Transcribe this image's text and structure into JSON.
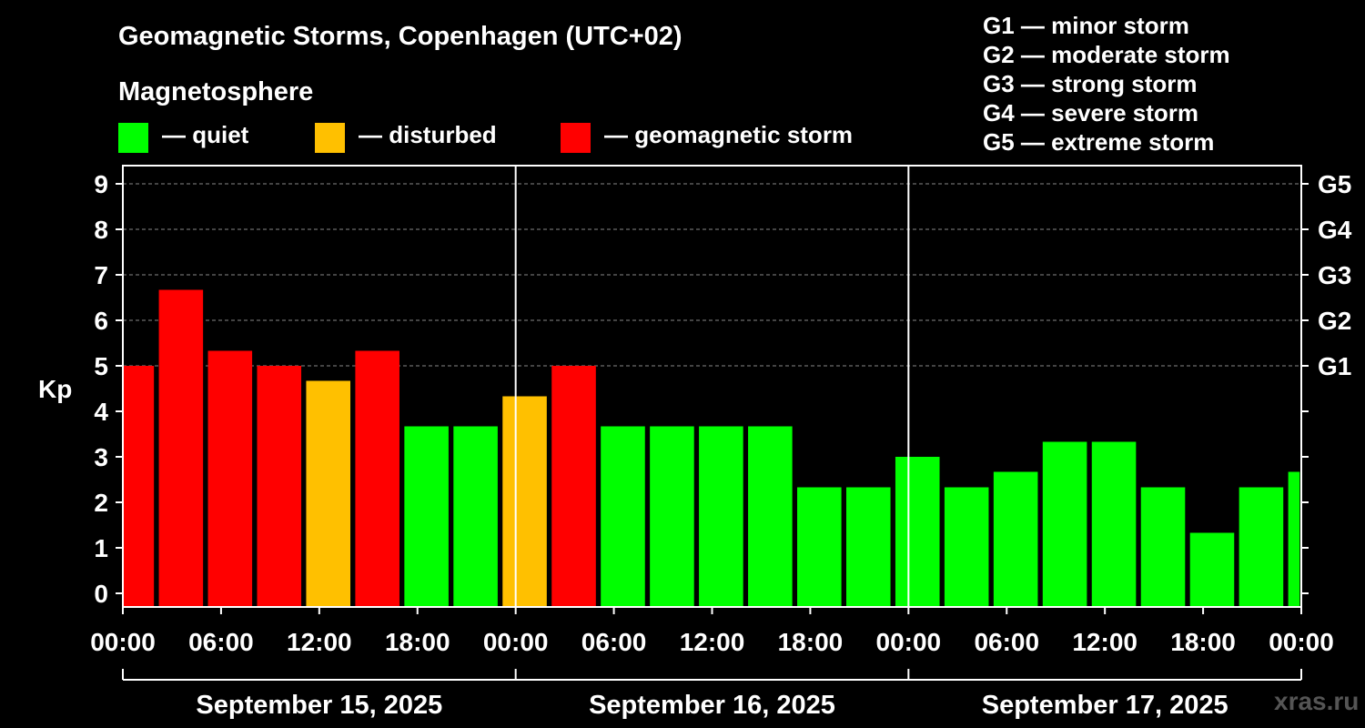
{
  "title": "Geomagnetic Storms, Copenhagen (UTC+02)",
  "magnetosphere_label": "Magnetosphere",
  "legend": [
    {
      "label": "— quiet",
      "color": "#00ff00"
    },
    {
      "label": "— disturbed",
      "color": "#ffc000"
    },
    {
      "label": "— geomagnetic storm",
      "color": "#ff0000"
    }
  ],
  "storm_scale": [
    "G1 — minor storm",
    "G2 — moderate storm",
    "G3 — strong storm",
    "G4 — severe storm",
    "G5 — extreme storm"
  ],
  "watermark": "xras.ru",
  "colors": {
    "background": "#000000",
    "axis": "#ffffff",
    "grid": "#888888"
  },
  "chart_data": {
    "type": "bar",
    "ylabel": "Kp",
    "ylim": [
      -0.3,
      9.4
    ],
    "yticks": [
      "0",
      "1",
      "2",
      "3",
      "4",
      "5",
      "6",
      "7",
      "8",
      "9"
    ],
    "right_ticks": [
      {
        "kp": 5,
        "label": "G1"
      },
      {
        "kp": 6,
        "label": "G2"
      },
      {
        "kp": 7,
        "label": "G3"
      },
      {
        "kp": 8,
        "label": "G4"
      },
      {
        "kp": 9,
        "label": "G5"
      }
    ],
    "x_range_hours": [
      0,
      72
    ],
    "xtick_labels": [
      "00:00",
      "06:00",
      "12:00",
      "18:00",
      "00:00",
      "06:00",
      "12:00",
      "18:00",
      "00:00",
      "06:00",
      "12:00",
      "18:00",
      "00:00"
    ],
    "day_separators_hours": [
      24,
      48
    ],
    "days": [
      "September 15, 2025",
      "September 16, 2025",
      "September 17, 2025"
    ],
    "bars": [
      {
        "start_hour": 0,
        "end_hour": 1.9,
        "kp": 5.0,
        "status": "storm"
      },
      {
        "start_hour": 2.2,
        "end_hour": 4.9,
        "kp": 6.67,
        "status": "storm"
      },
      {
        "start_hour": 5.2,
        "end_hour": 7.9,
        "kp": 5.33,
        "status": "storm"
      },
      {
        "start_hour": 8.2,
        "end_hour": 10.9,
        "kp": 5.0,
        "status": "storm"
      },
      {
        "start_hour": 11.2,
        "end_hour": 13.9,
        "kp": 4.67,
        "status": "disturbed"
      },
      {
        "start_hour": 14.2,
        "end_hour": 16.9,
        "kp": 5.33,
        "status": "storm"
      },
      {
        "start_hour": 17.2,
        "end_hour": 19.9,
        "kp": 3.67,
        "status": "quiet"
      },
      {
        "start_hour": 20.2,
        "end_hour": 22.9,
        "kp": 3.67,
        "status": "quiet"
      },
      {
        "start_hour": 23.2,
        "end_hour": 25.9,
        "kp": 4.33,
        "status": "disturbed"
      },
      {
        "start_hour": 26.2,
        "end_hour": 28.9,
        "kp": 5.0,
        "status": "storm"
      },
      {
        "start_hour": 29.2,
        "end_hour": 31.9,
        "kp": 3.67,
        "status": "quiet"
      },
      {
        "start_hour": 32.2,
        "end_hour": 34.9,
        "kp": 3.67,
        "status": "quiet"
      },
      {
        "start_hour": 35.2,
        "end_hour": 37.9,
        "kp": 3.67,
        "status": "quiet"
      },
      {
        "start_hour": 38.2,
        "end_hour": 40.9,
        "kp": 3.67,
        "status": "quiet"
      },
      {
        "start_hour": 41.2,
        "end_hour": 43.9,
        "kp": 2.33,
        "status": "quiet"
      },
      {
        "start_hour": 44.2,
        "end_hour": 46.9,
        "kp": 2.33,
        "status": "quiet"
      },
      {
        "start_hour": 47.2,
        "end_hour": 49.9,
        "kp": 3.0,
        "status": "quiet"
      },
      {
        "start_hour": 50.2,
        "end_hour": 52.9,
        "kp": 2.33,
        "status": "quiet"
      },
      {
        "start_hour": 53.2,
        "end_hour": 55.9,
        "kp": 2.67,
        "status": "quiet"
      },
      {
        "start_hour": 56.2,
        "end_hour": 58.9,
        "kp": 3.33,
        "status": "quiet"
      },
      {
        "start_hour": 59.2,
        "end_hour": 61.9,
        "kp": 3.33,
        "status": "quiet"
      },
      {
        "start_hour": 62.2,
        "end_hour": 64.9,
        "kp": 2.33,
        "status": "quiet"
      },
      {
        "start_hour": 65.2,
        "end_hour": 67.9,
        "kp": 1.33,
        "status": "quiet"
      },
      {
        "start_hour": 68.2,
        "end_hour": 70.9,
        "kp": 2.33,
        "status": "quiet"
      },
      {
        "start_hour": 71.2,
        "end_hour": 71.9,
        "kp": 2.67,
        "status": "quiet"
      }
    ],
    "status_colors": {
      "quiet": "#00ff00",
      "disturbed": "#ffc000",
      "storm": "#ff0000"
    }
  }
}
